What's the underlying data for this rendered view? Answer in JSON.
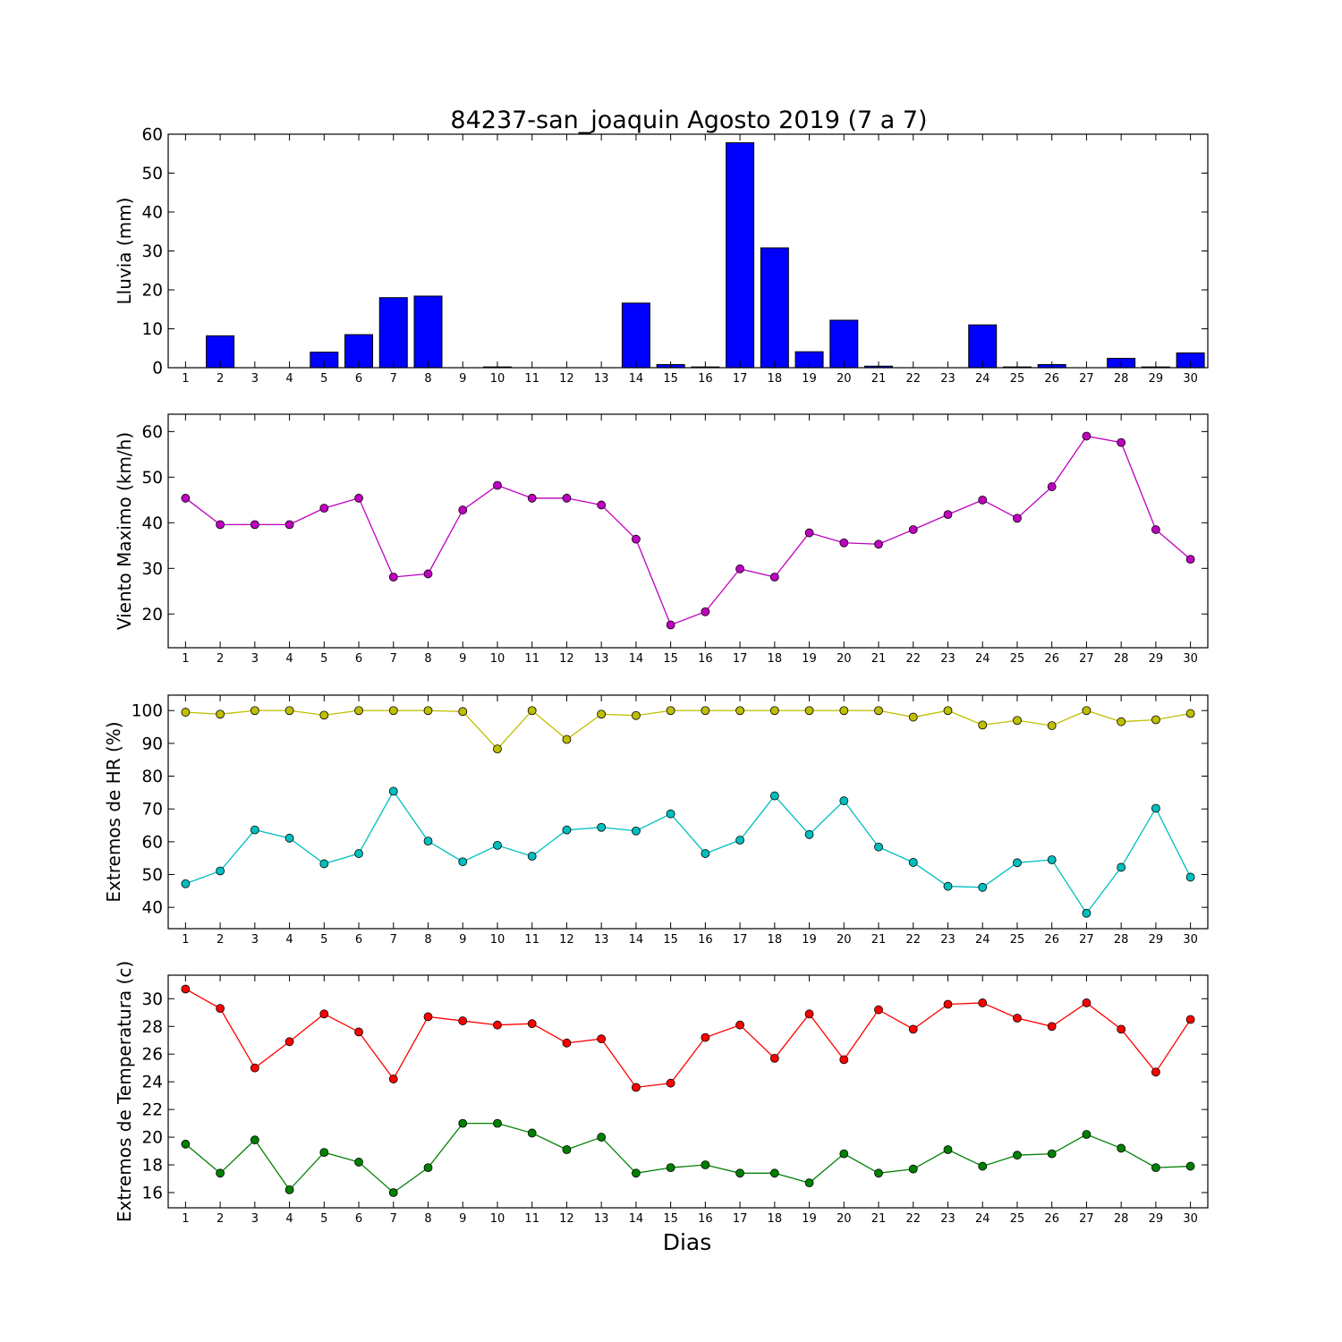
{
  "title": "84237-san_joaquin Agosto 2019  (7 a 7)",
  "xlabel": "Dias",
  "days": [
    "1",
    "2",
    "3",
    "4",
    "5",
    "6",
    "7",
    "8",
    "9",
    "10",
    "11",
    "12",
    "13",
    "14",
    "15",
    "16",
    "17",
    "18",
    "19",
    "20",
    "21",
    "22",
    "23",
    "24",
    "25",
    "26",
    "27",
    "28",
    "29",
    "30"
  ],
  "chart_data": [
    {
      "type": "bar",
      "ylabel": "Lluvia (mm)",
      "ylim": [
        0,
        60
      ],
      "yticks": [
        "0",
        "10",
        "20",
        "30",
        "40",
        "50",
        "60"
      ],
      "x": [
        1,
        2,
        3,
        4,
        5,
        6,
        7,
        8,
        9,
        10,
        11,
        12,
        13,
        14,
        15,
        16,
        17,
        18,
        19,
        20,
        21,
        22,
        23,
        24,
        25,
        26,
        27,
        28,
        29,
        30
      ],
      "series": [
        {
          "color": "#0000ff",
          "values": [
            0,
            8.2,
            0,
            0,
            4.0,
            8.5,
            18.0,
            18.4,
            0,
            0.2,
            0,
            0,
            0,
            16.6,
            0.8,
            0.2,
            57.8,
            30.8,
            4.1,
            12.2,
            0.4,
            0,
            0,
            11.0,
            0.2,
            0.8,
            0,
            2.4,
            0.2,
            3.8
          ]
        }
      ]
    },
    {
      "type": "line",
      "ylabel": "Viento Maximo (km/h)",
      "ylim": [
        12.6,
        63.8
      ],
      "yticks": [
        "20",
        "30",
        "40",
        "50",
        "60"
      ],
      "x": [
        1,
        2,
        3,
        4,
        5,
        6,
        7,
        8,
        9,
        10,
        11,
        12,
        13,
        14,
        15,
        16,
        17,
        18,
        19,
        20,
        21,
        22,
        23,
        24,
        25,
        26,
        27,
        28,
        29,
        30
      ],
      "series": [
        {
          "color": "#bf00bf",
          "values": [
            45.4,
            39.6,
            39.6,
            39.6,
            43.2,
            45.4,
            28.1,
            28.8,
            42.8,
            48.2,
            45.4,
            45.4,
            43.9,
            36.4,
            17.6,
            20.5,
            29.9,
            28.1,
            37.8,
            35.6,
            35.3,
            38.5,
            41.8,
            45.0,
            41.0,
            47.9,
            59.0,
            57.6,
            38.5,
            32.0
          ]
        }
      ]
    },
    {
      "type": "line",
      "ylabel": "Extremos de HR (%)",
      "ylim": [
        33.5,
        104.7
      ],
      "yticks": [
        "40",
        "50",
        "60",
        "70",
        "80",
        "90",
        "100"
      ],
      "x": [
        1,
        2,
        3,
        4,
        5,
        6,
        7,
        8,
        9,
        10,
        11,
        12,
        13,
        14,
        15,
        16,
        17,
        18,
        19,
        20,
        21,
        22,
        23,
        24,
        25,
        26,
        27,
        28,
        29,
        30
      ],
      "series": [
        {
          "color": "#bfbf00",
          "values": [
            99.5,
            98.9,
            100,
            100,
            98.6,
            100,
            100,
            100,
            99.7,
            88.3,
            100,
            91.2,
            98.9,
            98.5,
            100,
            100,
            100,
            100,
            100,
            100,
            100,
            98.0,
            100,
            95.6,
            97.0,
            95.4,
            100,
            96.6,
            97.2,
            99.1
          ]
        },
        {
          "color": "#00bfbf",
          "values": [
            47.2,
            51.1,
            63.6,
            61.1,
            53.3,
            56.4,
            75.4,
            60.2,
            53.9,
            58.9,
            55.6,
            63.6,
            64.4,
            63.3,
            68.5,
            56.4,
            60.5,
            74.0,
            62.2,
            72.5,
            58.4,
            53.7,
            46.4,
            46.1,
            53.6,
            54.5,
            38.2,
            52.2,
            70.2,
            49.2
          ]
        }
      ]
    },
    {
      "type": "line",
      "ylabel": "Extremos de Temperatura (c)",
      "ylim": [
        14.9,
        31.7
      ],
      "yticks": [
        "16",
        "18",
        "20",
        "22",
        "24",
        "26",
        "28",
        "30"
      ],
      "x": [
        1,
        2,
        3,
        4,
        5,
        6,
        7,
        8,
        9,
        10,
        11,
        12,
        13,
        14,
        15,
        16,
        17,
        18,
        19,
        20,
        21,
        22,
        23,
        24,
        25,
        26,
        27,
        28,
        29,
        30
      ],
      "series": [
        {
          "color": "#ff0000",
          "values": [
            30.7,
            29.3,
            25.0,
            26.9,
            28.9,
            27.6,
            24.2,
            28.7,
            28.4,
            28.1,
            28.2,
            26.8,
            27.1,
            23.6,
            23.9,
            27.2,
            28.1,
            25.7,
            28.9,
            25.6,
            29.2,
            27.8,
            29.6,
            29.7,
            28.6,
            28.0,
            29.7,
            27.8,
            24.7,
            28.5
          ]
        },
        {
          "color": "#008000",
          "values": [
            19.5,
            17.4,
            19.8,
            16.2,
            18.9,
            18.2,
            16.0,
            17.8,
            21.0,
            21.0,
            20.3,
            19.1,
            20.0,
            17.4,
            17.8,
            18.0,
            17.4,
            17.4,
            16.7,
            18.8,
            17.4,
            17.7,
            19.1,
            17.9,
            18.7,
            18.8,
            20.2,
            19.2,
            17.8,
            17.9
          ]
        }
      ]
    }
  ]
}
